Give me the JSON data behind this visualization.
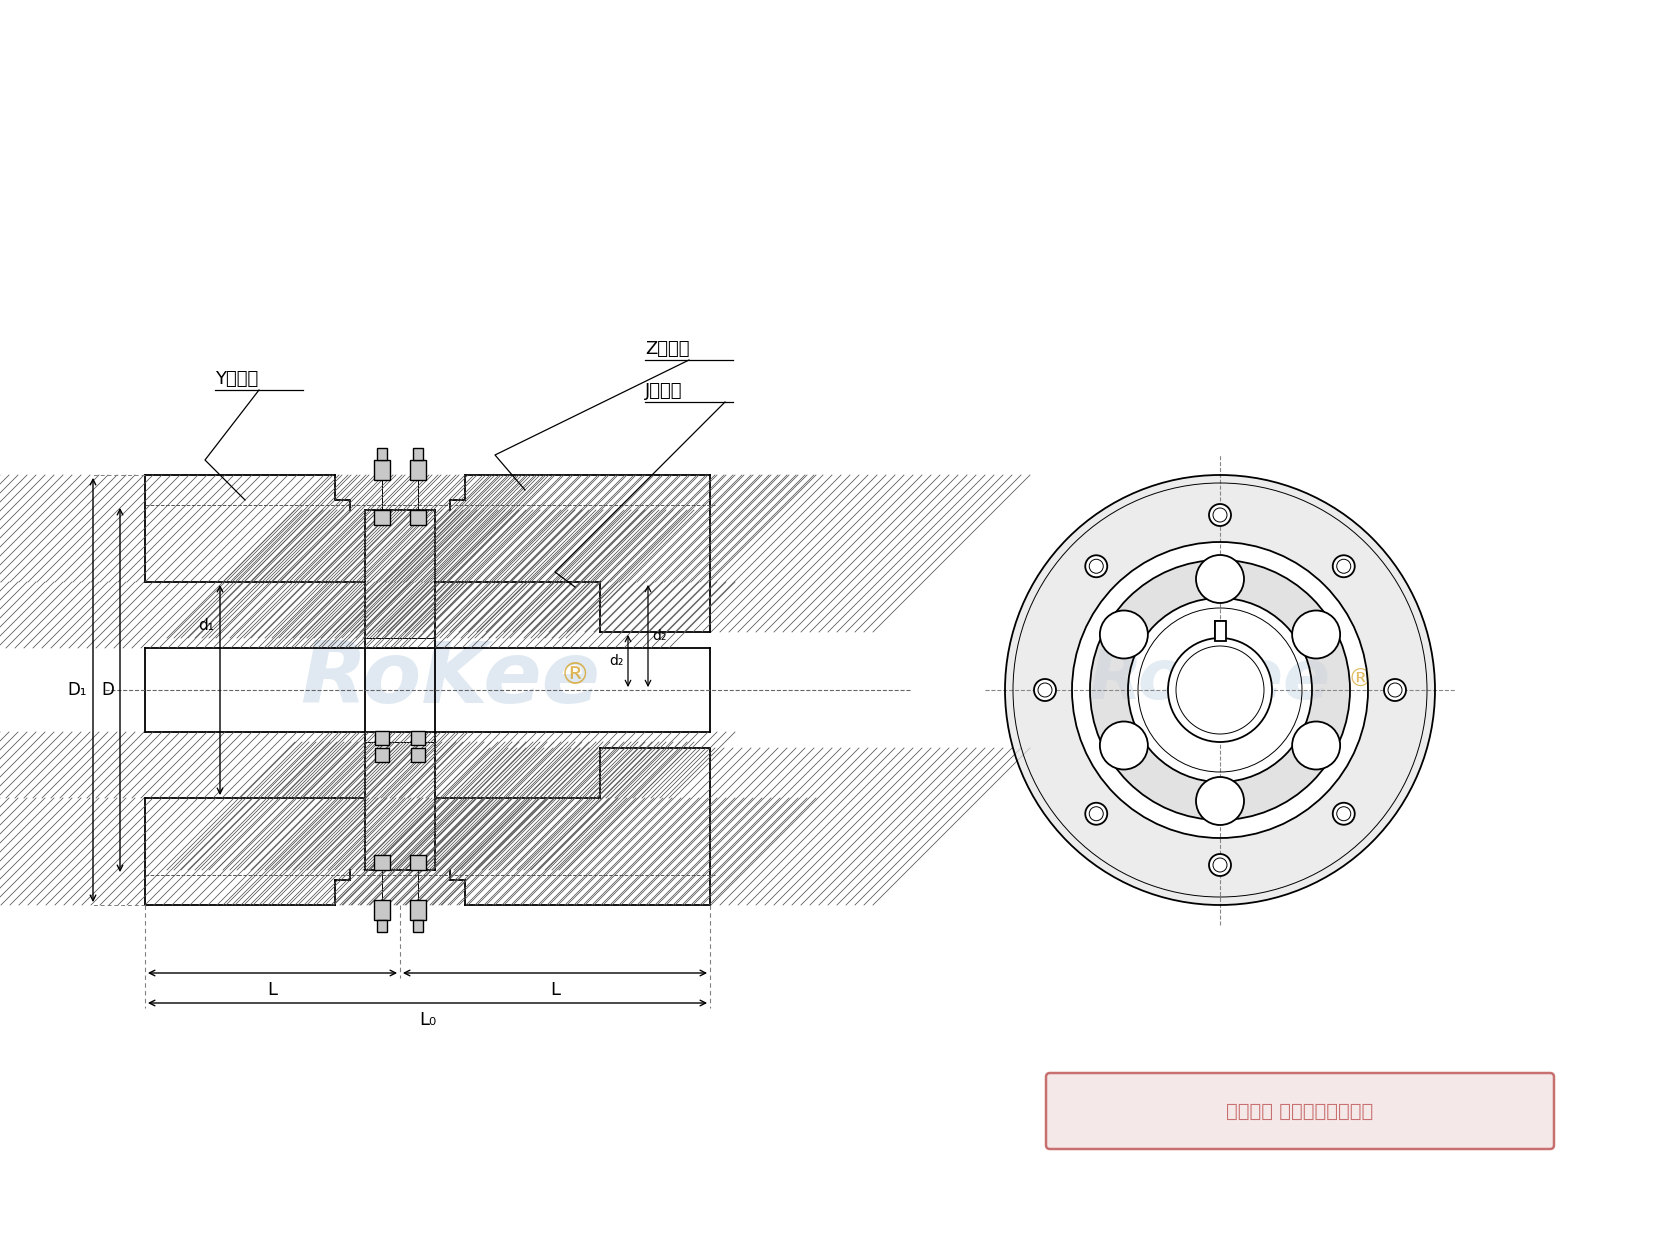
{
  "bg_color": "#ffffff",
  "line_color": "#000000",
  "hatch_color": "#444444",
  "watermark_color": "#c8d8e8",
  "watermark_orange": "#d4a020",
  "copyright_color": "#c87070",
  "copyright_bg": "#f5e8e8",
  "label_Y": "Y型轴孔",
  "label_Z": "Z型轴孔",
  "label_J": "J型轴孔",
  "label_D1": "D₁",
  "label_D": "D",
  "label_d1": "d₁",
  "label_d2": "d₂",
  "label_dz": "d₂",
  "label_L": "L",
  "label_L0": "L₀",
  "copyright": "版权所有 侵权必被严厉追究",
  "watermark_text": "RoKee"
}
